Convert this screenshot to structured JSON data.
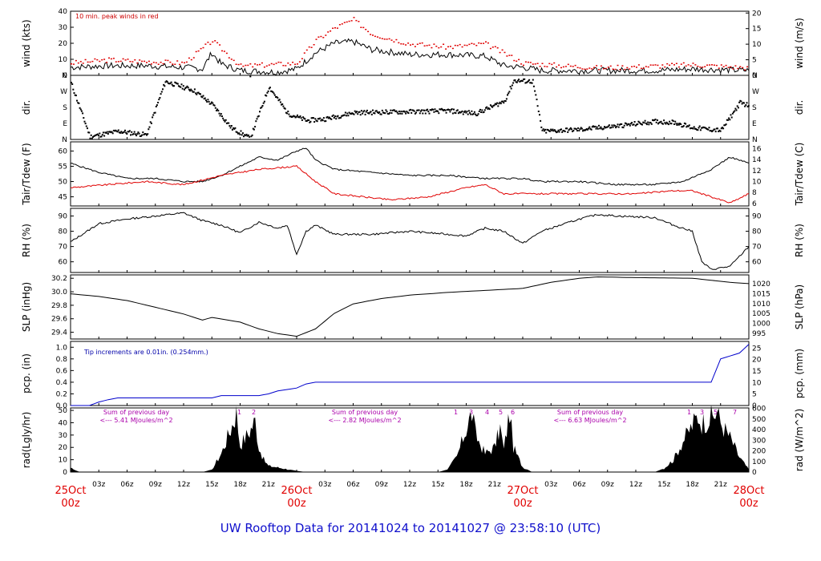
{
  "title": "UW Rooftop Data for 20141024  to  20141027 @ 23:58:10  (UTC)",
  "x_axis": {
    "hour_ticks": [
      "03z",
      "06z",
      "09z",
      "12z",
      "15z",
      "18z",
      "21z"
    ],
    "days": [
      {
        "date": "25Oct",
        "hour": "00z"
      },
      {
        "date": "26Oct",
        "hour": "00z"
      },
      {
        "date": "27Oct",
        "hour": "00z"
      },
      {
        "date": "28Oct",
        "hour": "00z"
      }
    ]
  },
  "panels": {
    "wind": {
      "left_label": "wind (kts)",
      "right_label": "wind (m/s)",
      "note": "10 min. peak winds in red",
      "left_ticks": [
        "0",
        "10",
        "20",
        "30",
        "40"
      ],
      "right_ticks": [
        "0",
        "5",
        "10",
        "15",
        "20"
      ]
    },
    "dir": {
      "left_label": "dir.",
      "right_label": "dir.",
      "ticks": [
        "N",
        "E",
        "S",
        "W",
        "N"
      ]
    },
    "temp": {
      "left_label": "Tair/Tdew (F)",
      "right_label": "Tair/Tdew (C)",
      "left_ticks": [
        "45",
        "50",
        "55",
        "60"
      ],
      "right_ticks": [
        "6",
        "8",
        "10",
        "12",
        "14",
        "16"
      ]
    },
    "rh": {
      "left_label": "RH (%)",
      "right_label": "RH (%)",
      "ticks": [
        "60",
        "70",
        "80",
        "90"
      ]
    },
    "slp": {
      "left_label": "SLP (inHg)",
      "right_label": "SLP (hPa)",
      "left_ticks": [
        "29.4",
        "29.6",
        "29.8",
        "30.0",
        "30.2"
      ],
      "right_ticks": [
        "995",
        "1000",
        "1005",
        "1010",
        "1015",
        "1020"
      ]
    },
    "pcp": {
      "left_label": "pcp. (in)",
      "right_label": "pcp. (mm)",
      "note": "Tip increments are 0.01in. (0.254mm.)",
      "left_ticks": [
        "0.0",
        "0.2",
        "0.4",
        "0.6",
        "0.8",
        "1.0"
      ],
      "right_ticks": [
        "0",
        "5",
        "10",
        "15",
        "20",
        "25"
      ]
    },
    "rad": {
      "left_label": "rad(Lgly/hr)",
      "right_label": "rad (W/m^2)",
      "left_ticks": [
        "0",
        "10",
        "20",
        "30",
        "40",
        "50"
      ],
      "right_ticks": [
        "0",
        "100",
        "200",
        "300",
        "400",
        "500",
        "600"
      ],
      "day_notes": [
        {
          "line1": "Sum of previous day",
          "line2": "<--- 5.41 MJoules/m^2",
          "marks": [
            "1",
            "2"
          ]
        },
        {
          "line1": "Sum of previous day",
          "line2": "<--- 2.82 MJoules/m^2",
          "marks": [
            "1",
            "3",
            "4",
            "5",
            "6"
          ]
        },
        {
          "line1": "Sum of previous day",
          "line2": "<--- 6.63 MJoules/m^2",
          "marks": [
            "1",
            "3",
            "5",
            "7"
          ]
        }
      ]
    }
  },
  "colors": {
    "main": "#000000",
    "peak": "#e00000",
    "dewpoint": "#e00000",
    "precip": "#0000cc",
    "radiation": "#000000",
    "note_wind": "#cc0000",
    "note_pcp": "#0000aa",
    "note_rad": "#aa00aa",
    "title": "#1010cc"
  },
  "chart_data": {
    "type": "line",
    "x_unit": "hours since 2014-10-25 00z",
    "x_range": [
      0,
      72
    ],
    "series": [
      {
        "name": "wind",
        "unit": "kts",
        "ylim": [
          0,
          40
        ],
        "points": [
          [
            0,
            5
          ],
          [
            4,
            6
          ],
          [
            8,
            6
          ],
          [
            12,
            5
          ],
          [
            14,
            4
          ],
          [
            15,
            14
          ],
          [
            16,
            7
          ],
          [
            18,
            3
          ],
          [
            22,
            2
          ],
          [
            24,
            4
          ],
          [
            26,
            14
          ],
          [
            28,
            20
          ],
          [
            30,
            21
          ],
          [
            32,
            16
          ],
          [
            36,
            13
          ],
          [
            40,
            13
          ],
          [
            44,
            12
          ],
          [
            46,
            6
          ],
          [
            48,
            5
          ],
          [
            50,
            3
          ],
          [
            56,
            3
          ],
          [
            62,
            3
          ],
          [
            66,
            4
          ],
          [
            72,
            3
          ]
        ]
      },
      {
        "name": "peak",
        "unit": "kts",
        "ylim": [
          0,
          40
        ],
        "points": [
          [
            0,
            8
          ],
          [
            4,
            10
          ],
          [
            8,
            9
          ],
          [
            12,
            8
          ],
          [
            15,
            22
          ],
          [
            18,
            6
          ],
          [
            24,
            8
          ],
          [
            26,
            22
          ],
          [
            28,
            30
          ],
          [
            30,
            35
          ],
          [
            32,
            26
          ],
          [
            36,
            20
          ],
          [
            40,
            18
          ],
          [
            44,
            20
          ],
          [
            48,
            8
          ],
          [
            56,
            5
          ],
          [
            66,
            7
          ],
          [
            72,
            5
          ]
        ]
      },
      {
        "name": "dir",
        "unit": "deg",
        "ylim": [
          0,
          360
        ],
        "points": [
          [
            0,
            320
          ],
          [
            2,
            20
          ],
          [
            5,
            50
          ],
          [
            8,
            30
          ],
          [
            10,
            330
          ],
          [
            13,
            280
          ],
          [
            15,
            200
          ],
          [
            17,
            70
          ],
          [
            19,
            10
          ],
          [
            21,
            300
          ],
          [
            23,
            150
          ],
          [
            25,
            110
          ],
          [
            27,
            120
          ],
          [
            30,
            155
          ],
          [
            36,
            160
          ],
          [
            40,
            165
          ],
          [
            43,
            150
          ],
          [
            46,
            220
          ],
          [
            47,
            335
          ],
          [
            49,
            330
          ],
          [
            50,
            50
          ],
          [
            54,
            60
          ],
          [
            58,
            80
          ],
          [
            62,
            105
          ],
          [
            64,
            100
          ],
          [
            66,
            70
          ],
          [
            69,
            55
          ],
          [
            71,
            210
          ],
          [
            72,
            195
          ]
        ]
      },
      {
        "name": "Tair",
        "unit": "F",
        "ylim": [
          42,
          63
        ],
        "points": [
          [
            0,
            56
          ],
          [
            3,
            53
          ],
          [
            6,
            51
          ],
          [
            9,
            51
          ],
          [
            12,
            50
          ],
          [
            14,
            50
          ],
          [
            16,
            52
          ],
          [
            18,
            55
          ],
          [
            20,
            58
          ],
          [
            22,
            57
          ],
          [
            24,
            60
          ],
          [
            25,
            61
          ],
          [
            26,
            57
          ],
          [
            28,
            54
          ],
          [
            32,
            53
          ],
          [
            36,
            52
          ],
          [
            40,
            52
          ],
          [
            44,
            51
          ],
          [
            48,
            51
          ],
          [
            50,
            50
          ],
          [
            54,
            50
          ],
          [
            58,
            49
          ],
          [
            62,
            49
          ],
          [
            65,
            50
          ],
          [
            68,
            54
          ],
          [
            70,
            58
          ],
          [
            72,
            56
          ]
        ]
      },
      {
        "name": "Tdew",
        "unit": "F",
        "ylim": [
          42,
          63
        ],
        "points": [
          [
            0,
            48
          ],
          [
            4,
            49
          ],
          [
            8,
            50
          ],
          [
            12,
            49
          ],
          [
            16,
            52
          ],
          [
            20,
            54
          ],
          [
            24,
            55
          ],
          [
            26,
            50
          ],
          [
            28,
            46
          ],
          [
            34,
            44
          ],
          [
            38,
            45
          ],
          [
            42,
            48
          ],
          [
            44,
            49
          ],
          [
            46,
            46
          ],
          [
            50,
            46
          ],
          [
            56,
            46
          ],
          [
            60,
            46
          ],
          [
            64,
            47
          ],
          [
            66,
            47
          ],
          [
            68,
            45
          ],
          [
            70,
            43
          ],
          [
            72,
            46
          ]
        ]
      },
      {
        "name": "RH",
        "unit": "%",
        "ylim": [
          53,
          95
        ],
        "points": [
          [
            0,
            73
          ],
          [
            3,
            85
          ],
          [
            6,
            88
          ],
          [
            9,
            90
          ],
          [
            12,
            92
          ],
          [
            14,
            87
          ],
          [
            16,
            84
          ],
          [
            18,
            79
          ],
          [
            20,
            86
          ],
          [
            22,
            82
          ],
          [
            23,
            84
          ],
          [
            24,
            65
          ],
          [
            25,
            80
          ],
          [
            26,
            84
          ],
          [
            28,
            78
          ],
          [
            32,
            78
          ],
          [
            36,
            80
          ],
          [
            40,
            78
          ],
          [
            42,
            77
          ],
          [
            44,
            82
          ],
          [
            46,
            80
          ],
          [
            48,
            72
          ],
          [
            50,
            80
          ],
          [
            54,
            88
          ],
          [
            56,
            91
          ],
          [
            58,
            90
          ],
          [
            62,
            89
          ],
          [
            64,
            84
          ],
          [
            66,
            80
          ],
          [
            67,
            60
          ],
          [
            68,
            55
          ],
          [
            70,
            57
          ],
          [
            72,
            70
          ]
        ]
      },
      {
        "name": "SLP",
        "unit": "inHg",
        "ylim": [
          29.3,
          30.25
        ],
        "points": [
          [
            0,
            29.97
          ],
          [
            3,
            29.93
          ],
          [
            6,
            29.87
          ],
          [
            9,
            29.77
          ],
          [
            12,
            29.67
          ],
          [
            14,
            29.58
          ],
          [
            15,
            29.62
          ],
          [
            18,
            29.55
          ],
          [
            20,
            29.45
          ],
          [
            22,
            29.38
          ],
          [
            24,
            29.34
          ],
          [
            26,
            29.45
          ],
          [
            28,
            29.68
          ],
          [
            30,
            29.82
          ],
          [
            33,
            29.9
          ],
          [
            36,
            29.95
          ],
          [
            40,
            29.99
          ],
          [
            44,
            30.02
          ],
          [
            48,
            30.05
          ],
          [
            51,
            30.14
          ],
          [
            54,
            30.2
          ],
          [
            56,
            30.22
          ],
          [
            60,
            30.21
          ],
          [
            66,
            30.2
          ],
          [
            70,
            30.14
          ],
          [
            72,
            30.12
          ]
        ]
      },
      {
        "name": "pcp",
        "unit": "in",
        "ylim": [
          0,
          1.1
        ],
        "points": [
          [
            0,
            0.0
          ],
          [
            2,
            0.0
          ],
          [
            3,
            0.06
          ],
          [
            4,
            0.1
          ],
          [
            5,
            0.13
          ],
          [
            12,
            0.13
          ],
          [
            15,
            0.13
          ],
          [
            16,
            0.17
          ],
          [
            20,
            0.17
          ],
          [
            21,
            0.2
          ],
          [
            22,
            0.25
          ],
          [
            24,
            0.3
          ],
          [
            25,
            0.37
          ],
          [
            26,
            0.4
          ],
          [
            46,
            0.4
          ],
          [
            66,
            0.4
          ],
          [
            68,
            0.4
          ],
          [
            69,
            0.8
          ],
          [
            70,
            0.85
          ],
          [
            71,
            0.9
          ],
          [
            72,
            1.05
          ]
        ]
      },
      {
        "name": "rad",
        "unit": "Lgly/hr",
        "ylim": [
          0,
          52
        ],
        "points": [
          [
            0,
            3
          ],
          [
            1,
            0
          ],
          [
            14,
            0
          ],
          [
            15,
            2
          ],
          [
            16,
            15
          ],
          [
            17,
            35
          ],
          [
            17.6,
            48
          ],
          [
            18,
            22
          ],
          [
            19,
            33
          ],
          [
            19.6,
            42
          ],
          [
            20,
            20
          ],
          [
            20.5,
            10
          ],
          [
            21,
            5
          ],
          [
            24,
            1
          ],
          [
            25,
            0
          ],
          [
            39,
            0
          ],
          [
            40,
            2
          ],
          [
            41,
            12
          ],
          [
            42,
            35
          ],
          [
            42.6,
            48
          ],
          [
            43,
            30
          ],
          [
            44,
            15
          ],
          [
            45,
            20
          ],
          [
            45.6,
            36
          ],
          [
            46,
            18
          ],
          [
            46.6,
            49
          ],
          [
            47,
            20
          ],
          [
            48,
            4
          ],
          [
            49,
            0
          ],
          [
            62,
            0
          ],
          [
            63,
            3
          ],
          [
            64,
            10
          ],
          [
            65,
            25
          ],
          [
            66,
            38
          ],
          [
            66.6,
            46
          ],
          [
            67,
            40
          ],
          [
            68,
            44
          ],
          [
            68.6,
            48
          ],
          [
            69,
            40
          ],
          [
            70,
            28
          ],
          [
            71,
            12
          ],
          [
            72,
            2
          ]
        ]
      }
    ]
  }
}
